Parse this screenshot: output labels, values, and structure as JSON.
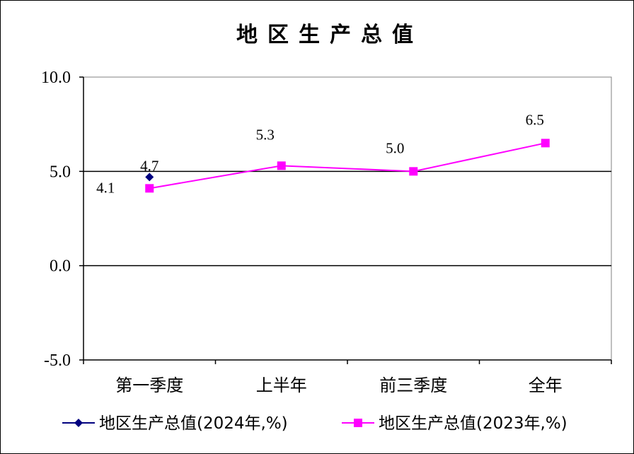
{
  "chart_data": {
    "type": "line",
    "title": "地区生产总值",
    "categories": [
      "第一季度",
      "上半年",
      "前三季度",
      "全年"
    ],
    "ylim": [
      -5.0,
      10.0
    ],
    "yticks": [
      "10.0",
      "5.0",
      "0.0",
      "-5.0"
    ],
    "ytick_values": [
      10,
      5,
      0,
      -5
    ],
    "gridlines": [
      5,
      0
    ],
    "legend_position": "bottom",
    "series": [
      {
        "name": "地区生产总值(2024年,%)",
        "values": [
          4.7,
          null,
          null,
          null
        ],
        "labels": [
          "4.7",
          "",
          "",
          ""
        ],
        "color": "#00007f",
        "marker": "diamond"
      },
      {
        "name": "地区生产总值(2023年,%)",
        "values": [
          4.1,
          5.3,
          5.0,
          6.5
        ],
        "labels": [
          "4.1",
          "5.3",
          "5.0",
          "6.5"
        ],
        "color": "#ff00ff",
        "marker": "square"
      }
    ]
  }
}
